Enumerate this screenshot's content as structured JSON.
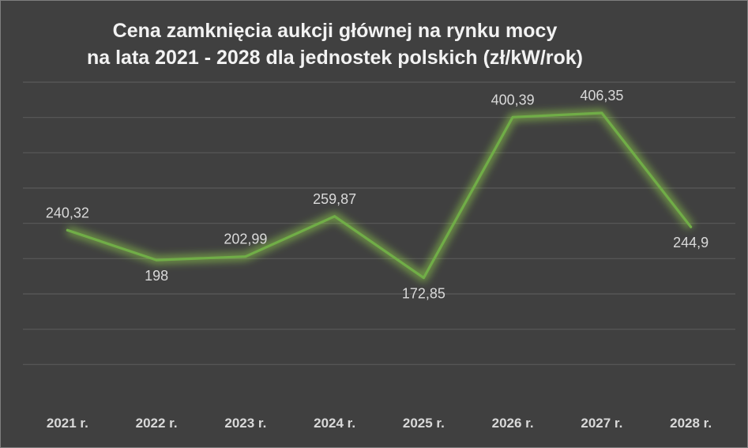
{
  "chart_data": {
    "type": "line",
    "title_line1": "Cena zamknięcia aukcji głównej na rynku mocy",
    "title_line2": "na lata 2021 - 2028 dla jednostek polskich (zł/kW/rok)",
    "xlabel": "",
    "ylabel": "",
    "categories": [
      "2021 r.",
      "2022 r.",
      "2023 r.",
      "2024 r.",
      "2025 r.",
      "2026 r.",
      "2027 r.",
      "2028 r."
    ],
    "values": [
      240.32,
      198,
      202.99,
      259.87,
      172.85,
      400.39,
      406.35,
      244.9
    ],
    "value_labels": [
      "240,32",
      "198",
      "202,99",
      "259,87",
      "172,85",
      "400,39",
      "406,35",
      "244,9"
    ],
    "ylim": [
      0,
      450
    ],
    "grid": true,
    "legend": "none",
    "line_color": "#70ad47",
    "glow_color": "#9be34a"
  }
}
